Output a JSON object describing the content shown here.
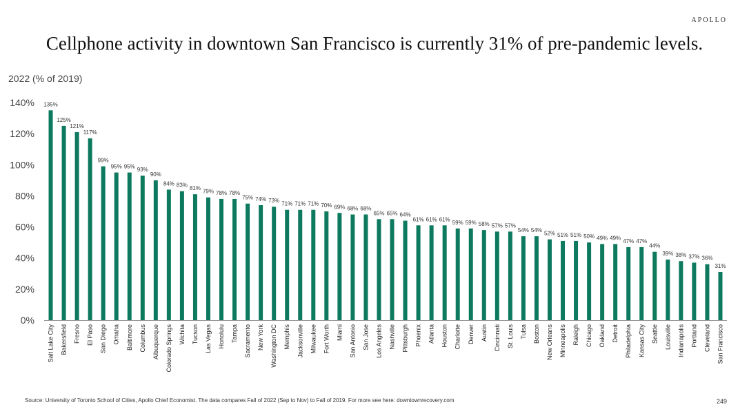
{
  "header": {
    "brand": "APOLLO",
    "title": "Cellphone activity in downtown San Francisco is currently 31% of pre-pandemic levels.",
    "subtitle": "2022 (% of 2019)"
  },
  "footer": {
    "source": "Source: University of Toronto School of Cities, Apollo Chief Economist. The data compares Fall of 2022 (Sep to Nov) to Fall of 2019. For more see here: downtownrecovery.com",
    "page_number": "249"
  },
  "colors": {
    "bar": "#0d7a5f",
    "axis": "#999999"
  },
  "chart_data": {
    "type": "bar",
    "title": "Cellphone activity in downtown San Francisco is currently 31% of pre-pandemic levels.",
    "ylabel": "2022 (% of 2019)",
    "xlabel": "",
    "ylim": [
      0,
      140
    ],
    "yticks": [
      "0%",
      "20%",
      "40%",
      "60%",
      "80%",
      "100%",
      "120%",
      "140%"
    ],
    "grid": false,
    "categories": [
      "Salt Lake City",
      "Bakersfield",
      "Fresno",
      "El Paso",
      "San Diego",
      "Omaha",
      "Baltimore",
      "Columbus",
      "Albuquerque",
      "Colorado Springs",
      "Wichita",
      "Tucson",
      "Las Vegas",
      "Honolulu",
      "Tampa",
      "Sacramento",
      "New York",
      "Washington DC",
      "Memphis",
      "Jacksonville",
      "Milwaukee",
      "Fort Worth",
      "Miami",
      "San Antonio",
      "San Jose",
      "Los Angeles",
      "Nashville",
      "Pittsburgh",
      "Phoenix",
      "Atlanta",
      "Houston",
      "Charlotte",
      "Denver",
      "Austin",
      "Cincinnati",
      "St. Louis",
      "Tulsa",
      "Boston",
      "New Orleans",
      "Minneapolis",
      "Raleigh",
      "Chicago",
      "Oakland",
      "Detroit",
      "Philadelphia",
      "Kansas City",
      "Seattle",
      "Louisville",
      "Indianapolis",
      "Portland",
      "Cleveland",
      "San Francisco"
    ],
    "values": [
      135,
      125,
      121,
      117,
      99,
      95,
      95,
      93,
      90,
      84,
      83,
      81,
      79,
      78,
      78,
      75,
      74,
      73,
      71,
      71,
      71,
      70,
      69,
      68,
      68,
      65,
      65,
      64,
      61,
      61,
      61,
      59,
      59,
      58,
      57,
      57,
      54,
      54,
      52,
      51,
      51,
      50,
      49,
      49,
      47,
      47,
      44,
      39,
      38,
      37,
      36,
      31
    ],
    "data_labels": [
      "135%",
      "125%",
      "121%",
      "117%",
      "99%",
      "95%",
      "95%",
      "93%",
      "90%",
      "84%",
      "83%",
      "81%",
      "79%",
      "78%",
      "78%",
      "75%",
      "74%",
      "73%",
      "71%",
      "71%",
      "71%",
      "70%",
      "69%",
      "68%",
      "68%",
      "65%",
      "65%",
      "64%",
      "61%",
      "61%",
      "61%",
      "59%",
      "59%",
      "58%",
      "57%",
      "57%",
      "54%",
      "54%",
      "52%",
      "51%",
      "51%",
      "50%",
      "49%",
      "49%",
      "47%",
      "47%",
      "44%",
      "39%",
      "38%",
      "37%",
      "36%",
      "31%"
    ]
  }
}
